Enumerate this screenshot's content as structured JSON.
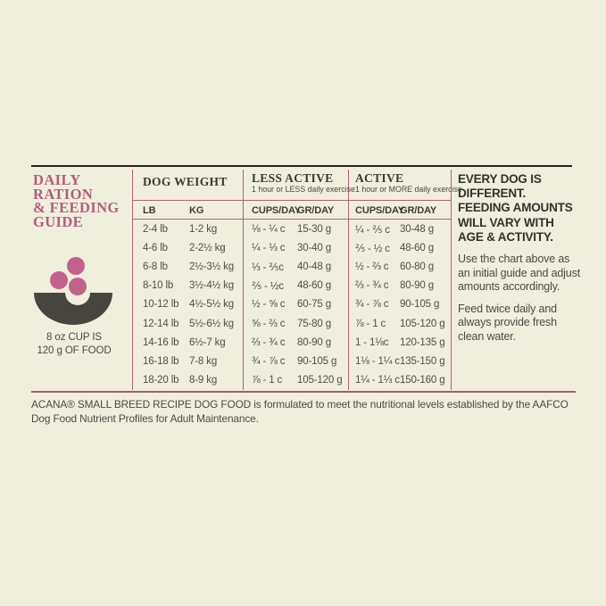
{
  "colors": {
    "background": "#f0eedd",
    "accent_mauve": "#b15e80",
    "rule_mauve": "#ab6379",
    "rule_black": "#23221f",
    "bowl_gray": "#474540",
    "kibble_pink": "#c2628c"
  },
  "guide": {
    "title_lines": [
      "DAILY RATION",
      "& FEEDING",
      "GUIDE"
    ],
    "cup_note_lines": [
      "8 oz CUP IS",
      "120 g OF FOOD"
    ]
  },
  "table": {
    "weight_header": "DOG WEIGHT",
    "less_active": {
      "title": "LESS ACTIVE",
      "subtitle": "1 hour or LESS daily exercise"
    },
    "active": {
      "title": "ACTIVE",
      "subtitle": "1 hour or MORE daily exercise"
    },
    "columns": {
      "lb": "LB",
      "kg": "KG",
      "cups": "CUPS/DAY",
      "grams": "GR/DAY"
    },
    "rows": [
      {
        "lb": "2-4 lb",
        "kg": "1-2 kg",
        "la_cups": "⅛ - ¼ c",
        "la_gr": "15-30 g",
        "a_cups": "¼ - ⅖ c",
        "a_gr": "30-48 g"
      },
      {
        "lb": "4-6 lb",
        "kg": "2-2½ kg",
        "la_cups": "¼ - ⅓ c",
        "la_gr": "30-40 g",
        "a_cups": "⅖ - ½ c",
        "a_gr": "48-60 g"
      },
      {
        "lb": "6-8 lb",
        "kg": "2½-3½ kg",
        "la_cups": "⅓ - ⅖c",
        "la_gr": "40-48 g",
        "a_cups": "½ - ⅔ c",
        "a_gr": "60-80 g"
      },
      {
        "lb": "8-10 lb",
        "kg": "3½-4½ kg",
        "la_cups": "⅖ - ½c",
        "la_gr": "48-60 g",
        "a_cups": "⅔ - ¾ c",
        "a_gr": "80-90 g"
      },
      {
        "lb": "10-12 lb",
        "kg": "4½-5½ kg",
        "la_cups": "½ - ⅝ c",
        "la_gr": "60-75 g",
        "a_cups": "¾ - ⅞ c",
        "a_gr": "90-105 g"
      },
      {
        "lb": "12-14 lb",
        "kg": "5½-6½ kg",
        "la_cups": "⅝ - ⅔ c",
        "la_gr": "75-80 g",
        "a_cups": "⅞ - 1 c",
        "a_gr": "105-120 g"
      },
      {
        "lb": "14-16 lb",
        "kg": "6½-7 kg",
        "la_cups": "⅔ - ¾ c",
        "la_gr": "80-90 g",
        "a_cups": "1 - 1⅛c",
        "a_gr": "120-135 g"
      },
      {
        "lb": "16-18 lb",
        "kg": "7-8 kg",
        "la_cups": "¾ - ⅞ c",
        "la_gr": "90-105 g",
        "a_cups": "1⅛ - 1¼ c",
        "a_gr": "135-150 g"
      },
      {
        "lb": "18-20 lb",
        "kg": "8-9 kg",
        "la_cups": "⅞ - 1 c",
        "la_gr": "105-120 g",
        "a_cups": "1¼ - 1⅓ c",
        "a_gr": "150-160 g"
      }
    ]
  },
  "notes": {
    "heading_lines": [
      "EVERY DOG IS DIFFERENT.",
      "FEEDING AMOUNTS",
      "WILL VARY WITH",
      "AGE & ACTIVITY."
    ],
    "para1": "Use the chart above as an initial guide and adjust amounts accordingly.",
    "para2": "Feed twice daily and always provide fresh clean water."
  },
  "footer": {
    "text": "ACANA® SMALL BREED RECIPE DOG FOOD is formulated to meet the nutritional levels established by the AAFCO Dog Food Nutrient Profiles for Adult Maintenance."
  }
}
